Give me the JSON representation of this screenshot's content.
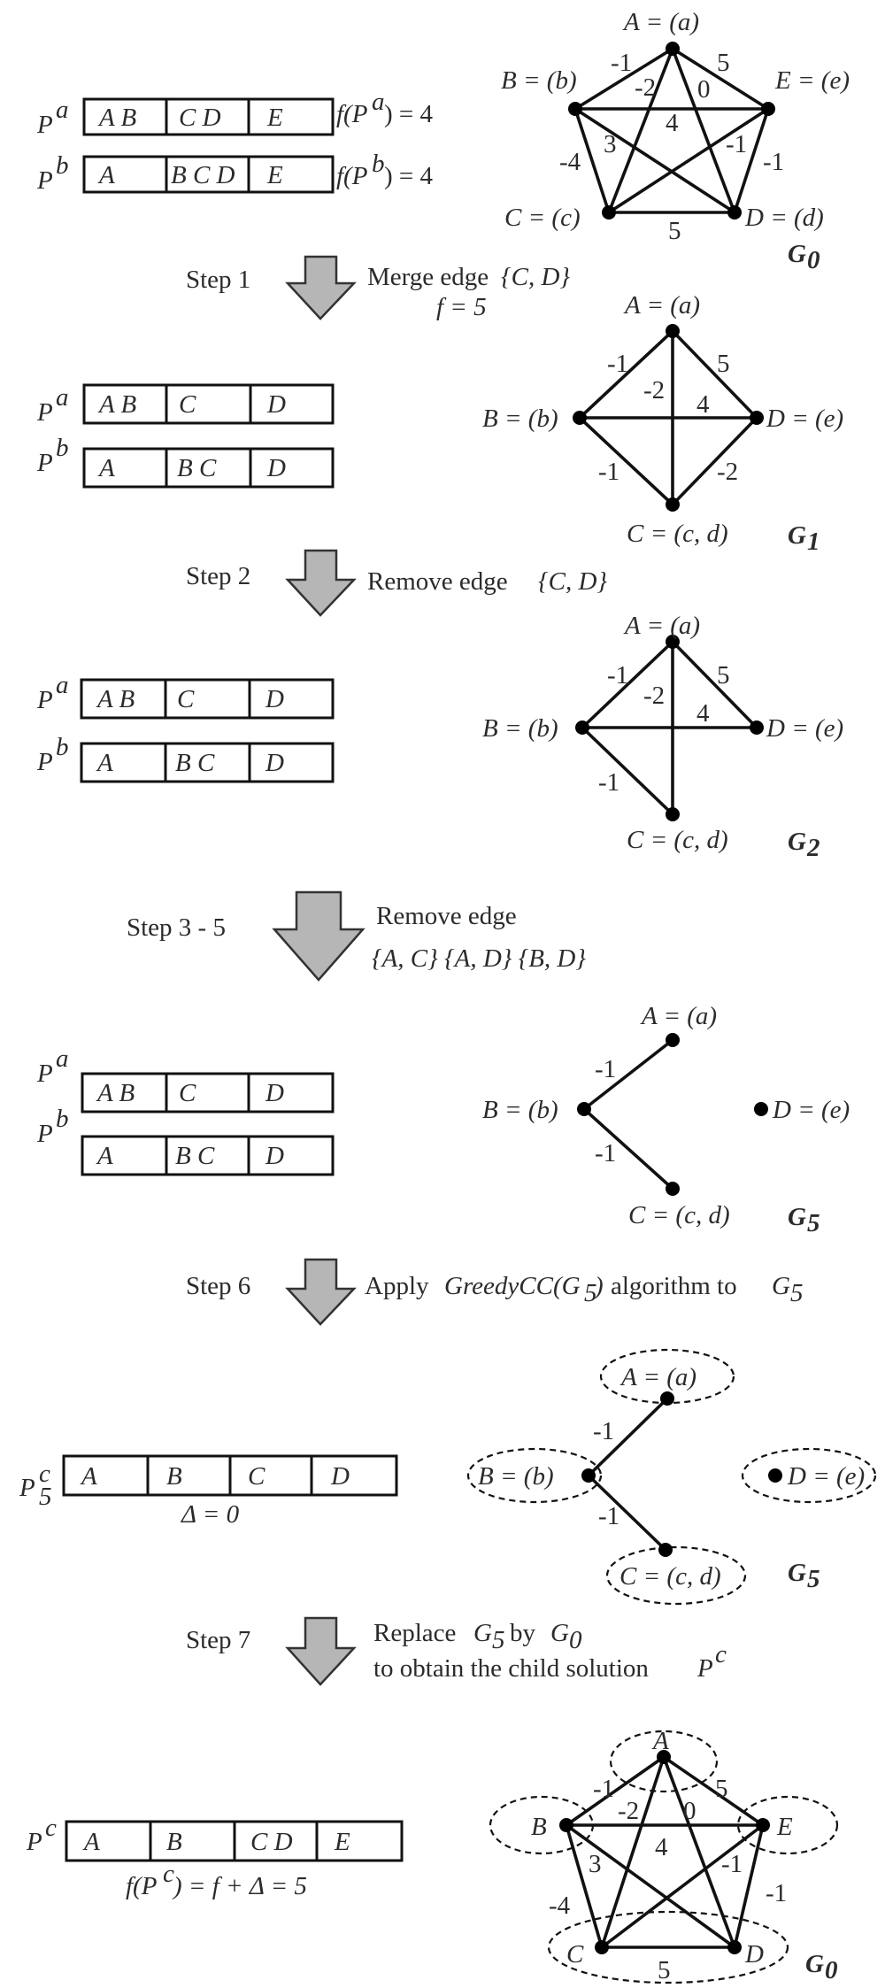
{
  "chromosomes": {
    "pa_symbol": "P",
    "pa_sup": "a",
    "pb_symbol": "P",
    "pb_sup": "b",
    "pc5_symbol": "P",
    "pc5_sup": "c",
    "pc5_sub": "5",
    "pc_symbol": "P",
    "pc_sup": "c"
  },
  "row0": {
    "pa_cells": [
      "A  B",
      "C D",
      "E"
    ],
    "pb_cells": [
      "A",
      "B C D",
      "E"
    ],
    "fa_prefix": "f(P",
    "fa_sup": "a",
    "fa_suffix": ")  =  4",
    "fb_prefix": "f(P",
    "fb_sup": "b",
    "fb_suffix": ")  =  4"
  },
  "row1": {
    "pa_cells": [
      "A  B",
      "C",
      "D"
    ],
    "pb_cells": [
      "A",
      "B C",
      "D"
    ]
  },
  "row2": {
    "pa_cells": [
      "A  B",
      "C",
      "D"
    ],
    "pb_cells": [
      "A",
      "B C",
      "D"
    ]
  },
  "row3": {
    "pa_cells": [
      "A  B",
      "C",
      "D"
    ],
    "pb_cells": [
      "A",
      "B C",
      "D"
    ]
  },
  "row4": {
    "pc_cells": [
      "A",
      "B",
      "C",
      "D"
    ],
    "delta": "Δ  =  0"
  },
  "row5": {
    "pc_cells": [
      "A",
      "B",
      "C D",
      "E"
    ],
    "f_prefix": "f(P",
    "f_sup": "c",
    "f_suffix": ")  =  f  +  Δ  =  5"
  },
  "steps": {
    "s1_label": "Step 1",
    "s1_text": "Merge edge",
    "s1_edge": "{C, D}",
    "s1_f": "f  =  5",
    "s2_label": "Step 2",
    "s2_text": "Remove edge",
    "s2_edge": "{C, D}",
    "s3_label": "Step 3 - 5",
    "s3_text": "Remove edge",
    "s3_edges": "{A, C}   {A, D}   {B, D}",
    "s6_label": "Step 6",
    "s6_apply": "Apply",
    "s6_algo": "GreedyCC(G",
    "s6_algo_sub": "5",
    "s6_algo_close": ")",
    "s6_rest": "algorithm to",
    "s6_target": "G",
    "s6_target_sub": "5",
    "s7_label": "Step 7",
    "s7_line1_a": "Replace",
    "s7_g5": "G",
    "s7_g5_sub": "5",
    "s7_by": "by",
    "s7_g0": "G",
    "s7_g0_sub": "0",
    "s7_line2": "to obtain the child solution",
    "s7_pc": "P",
    "s7_pc_sup": "c"
  },
  "graphs": {
    "g0": {
      "name": "G",
      "sub": "0",
      "nodes": {
        "A": "A = (a)",
        "B": "B = (b)",
        "C": "C = (c)",
        "D": "D = (d)",
        "E": "E = (e)"
      },
      "weights": {
        "AB": "-1",
        "AE": "5",
        "AC": "-2",
        "AD": "0",
        "BE": "4",
        "BC": "-4",
        "BD": "3",
        "EC": "-1",
        "ED": "-1",
        "CD": "5"
      }
    },
    "g1": {
      "name": "G",
      "sub": "1",
      "nodes": {
        "A": "A = (a)",
        "B": "B = (b)",
        "D": "D = (e)",
        "C": "C = (c, d)"
      },
      "weights": {
        "AB": "-1",
        "AD": "5",
        "AC": "-2",
        "BD": "4",
        "BC": "-1",
        "CD": "-2"
      }
    },
    "g2": {
      "name": "G",
      "sub": "2",
      "nodes": {
        "A": "A = (a)",
        "B": "B = (b)",
        "D": "D = (e)",
        "C": "C = (c, d)"
      },
      "weights": {
        "AB": "-1",
        "AD": "5",
        "AC": "-2",
        "BD": "4",
        "BC": "-1"
      }
    },
    "g5": {
      "name": "G",
      "sub": "5",
      "nodes": {
        "A": "A = (a)",
        "B": "B = (b)",
        "D": "D = (e)",
        "C": "C = (c, d)"
      },
      "weights": {
        "AB": "-1",
        "BC": "-1"
      }
    },
    "g5b": {
      "name": "G",
      "sub": "5",
      "nodes": {
        "A": "A = (a)",
        "B": "B = (b)",
        "D": "D = (e)",
        "C": "C = (c, d)"
      },
      "weights": {
        "AB": "-1",
        "BC": "-1"
      }
    },
    "g0b": {
      "name": "G",
      "sub": "0",
      "nodes": {
        "A": "A",
        "B": "B",
        "E": "E",
        "C": "C",
        "D": "D"
      },
      "weights": {
        "AB": "-1",
        "AE": "5",
        "AC": "-2",
        "AD": "0",
        "BE": "4",
        "BC": "-4",
        "BD": "3",
        "EC": "-1",
        "ED": "-1",
        "CD": "5"
      }
    }
  }
}
